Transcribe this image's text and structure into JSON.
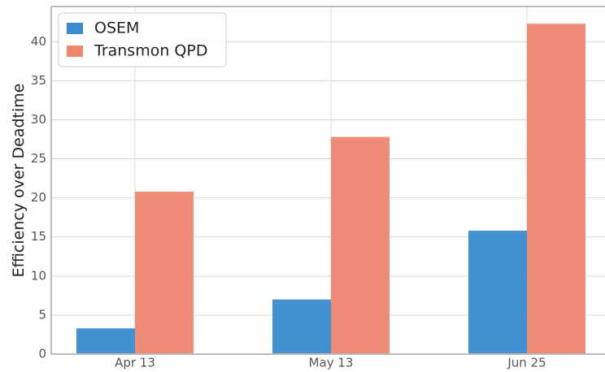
{
  "chart_data": {
    "type": "bar",
    "y_label": "Efficiency over Deadtime",
    "categories": [
      "Apr 13",
      "May 13",
      "Jun 25"
    ],
    "series": [
      {
        "name": "OSEM",
        "color": "#3a8bd0",
        "values": [
          3.3,
          7.0,
          15.8
        ]
      },
      {
        "name": "Transmon QPD",
        "color": "#ee8670",
        "values": [
          20.8,
          27.8,
          42.3
        ]
      }
    ],
    "ylim": [
      0,
      44.5
    ],
    "yticks": [
      0,
      5,
      10,
      15,
      20,
      25,
      30,
      35,
      40
    ],
    "grid": true,
    "legend": "upper left"
  }
}
